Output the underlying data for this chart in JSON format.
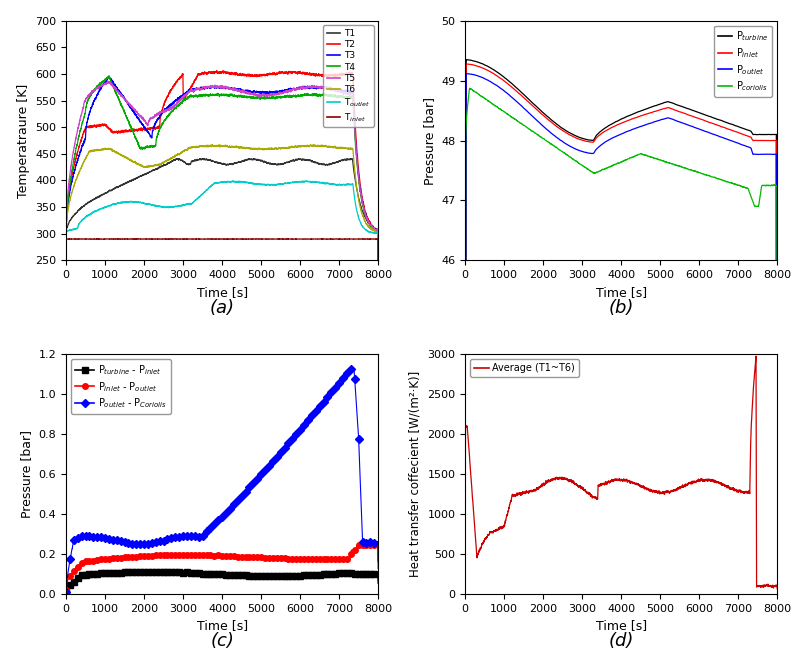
{
  "fig_width": 8.08,
  "fig_height": 6.66,
  "dpi": 100,
  "panel_a": {
    "title": "(a)",
    "xlabel": "Time [s]",
    "ylabel": "Temperatraure [K]",
    "xlim": [
      0,
      8000
    ],
    "ylim": [
      250,
      700
    ],
    "yticks": [
      250,
      300,
      350,
      400,
      450,
      500,
      550,
      600,
      650,
      700
    ],
    "xticks": [
      0,
      1000,
      2000,
      3000,
      4000,
      5000,
      6000,
      7000,
      8000
    ],
    "legend_labels": [
      "T1",
      "T2",
      "T3",
      "T4",
      "T5",
      "T6",
      "T$_{outlet}$",
      "T$_{inlet}$"
    ],
    "legend_colors": [
      "#333333",
      "#ff0000",
      "#0000ff",
      "#00aa00",
      "#cc44cc",
      "#aaaa00",
      "#00cccc",
      "#880000"
    ]
  },
  "panel_b": {
    "title": "(b)",
    "xlabel": "Time [s]",
    "ylabel": "Pressure [bar]",
    "xlim": [
      0,
      8000
    ],
    "ylim": [
      46,
      50
    ],
    "yticks": [
      46,
      47,
      48,
      49,
      50
    ],
    "xticks": [
      0,
      1000,
      2000,
      3000,
      4000,
      5000,
      6000,
      7000,
      8000
    ],
    "legend_labels": [
      "P$_{turbine}$",
      "P$_{inlet}$",
      "P$_{outlet}$",
      "P$_{coriolis}$"
    ],
    "legend_colors": [
      "#000000",
      "#ff0000",
      "#0000ff",
      "#00bb00"
    ]
  },
  "panel_c": {
    "title": "(c)",
    "xlabel": "Time [s]",
    "ylabel": "Pressure [bar]",
    "xlim": [
      0,
      8000
    ],
    "ylim": [
      0.0,
      1.2
    ],
    "yticks": [
      0.0,
      0.2,
      0.4,
      0.6,
      0.8,
      1.0,
      1.2
    ],
    "xticks": [
      0,
      1000,
      2000,
      3000,
      4000,
      5000,
      6000,
      7000,
      8000
    ],
    "legend_labels": [
      "P$_{turbine}$ - P$_{inlet}$",
      "P$_{inlet}$ - P$_{outlet}$",
      "P$_{outlet}$ - P$_{Coriolis}$"
    ],
    "legend_colors": [
      "#000000",
      "#ff0000",
      "#0000ff"
    ],
    "legend_markers": [
      "s",
      "o",
      "D"
    ]
  },
  "panel_d": {
    "title": "(d)",
    "xlabel": "Time [s]",
    "ylabel": "Heat transfer coffecient [W/(m²·K)]",
    "xlim": [
      0,
      8000
    ],
    "ylim": [
      0,
      3000
    ],
    "yticks": [
      0,
      500,
      1000,
      1500,
      2000,
      2500,
      3000
    ],
    "xticks": [
      0,
      1000,
      2000,
      3000,
      4000,
      5000,
      6000,
      7000,
      8000
    ],
    "legend_labels": [
      "Average (T1~T6)"
    ],
    "legend_colors": [
      "#cc0000"
    ]
  }
}
